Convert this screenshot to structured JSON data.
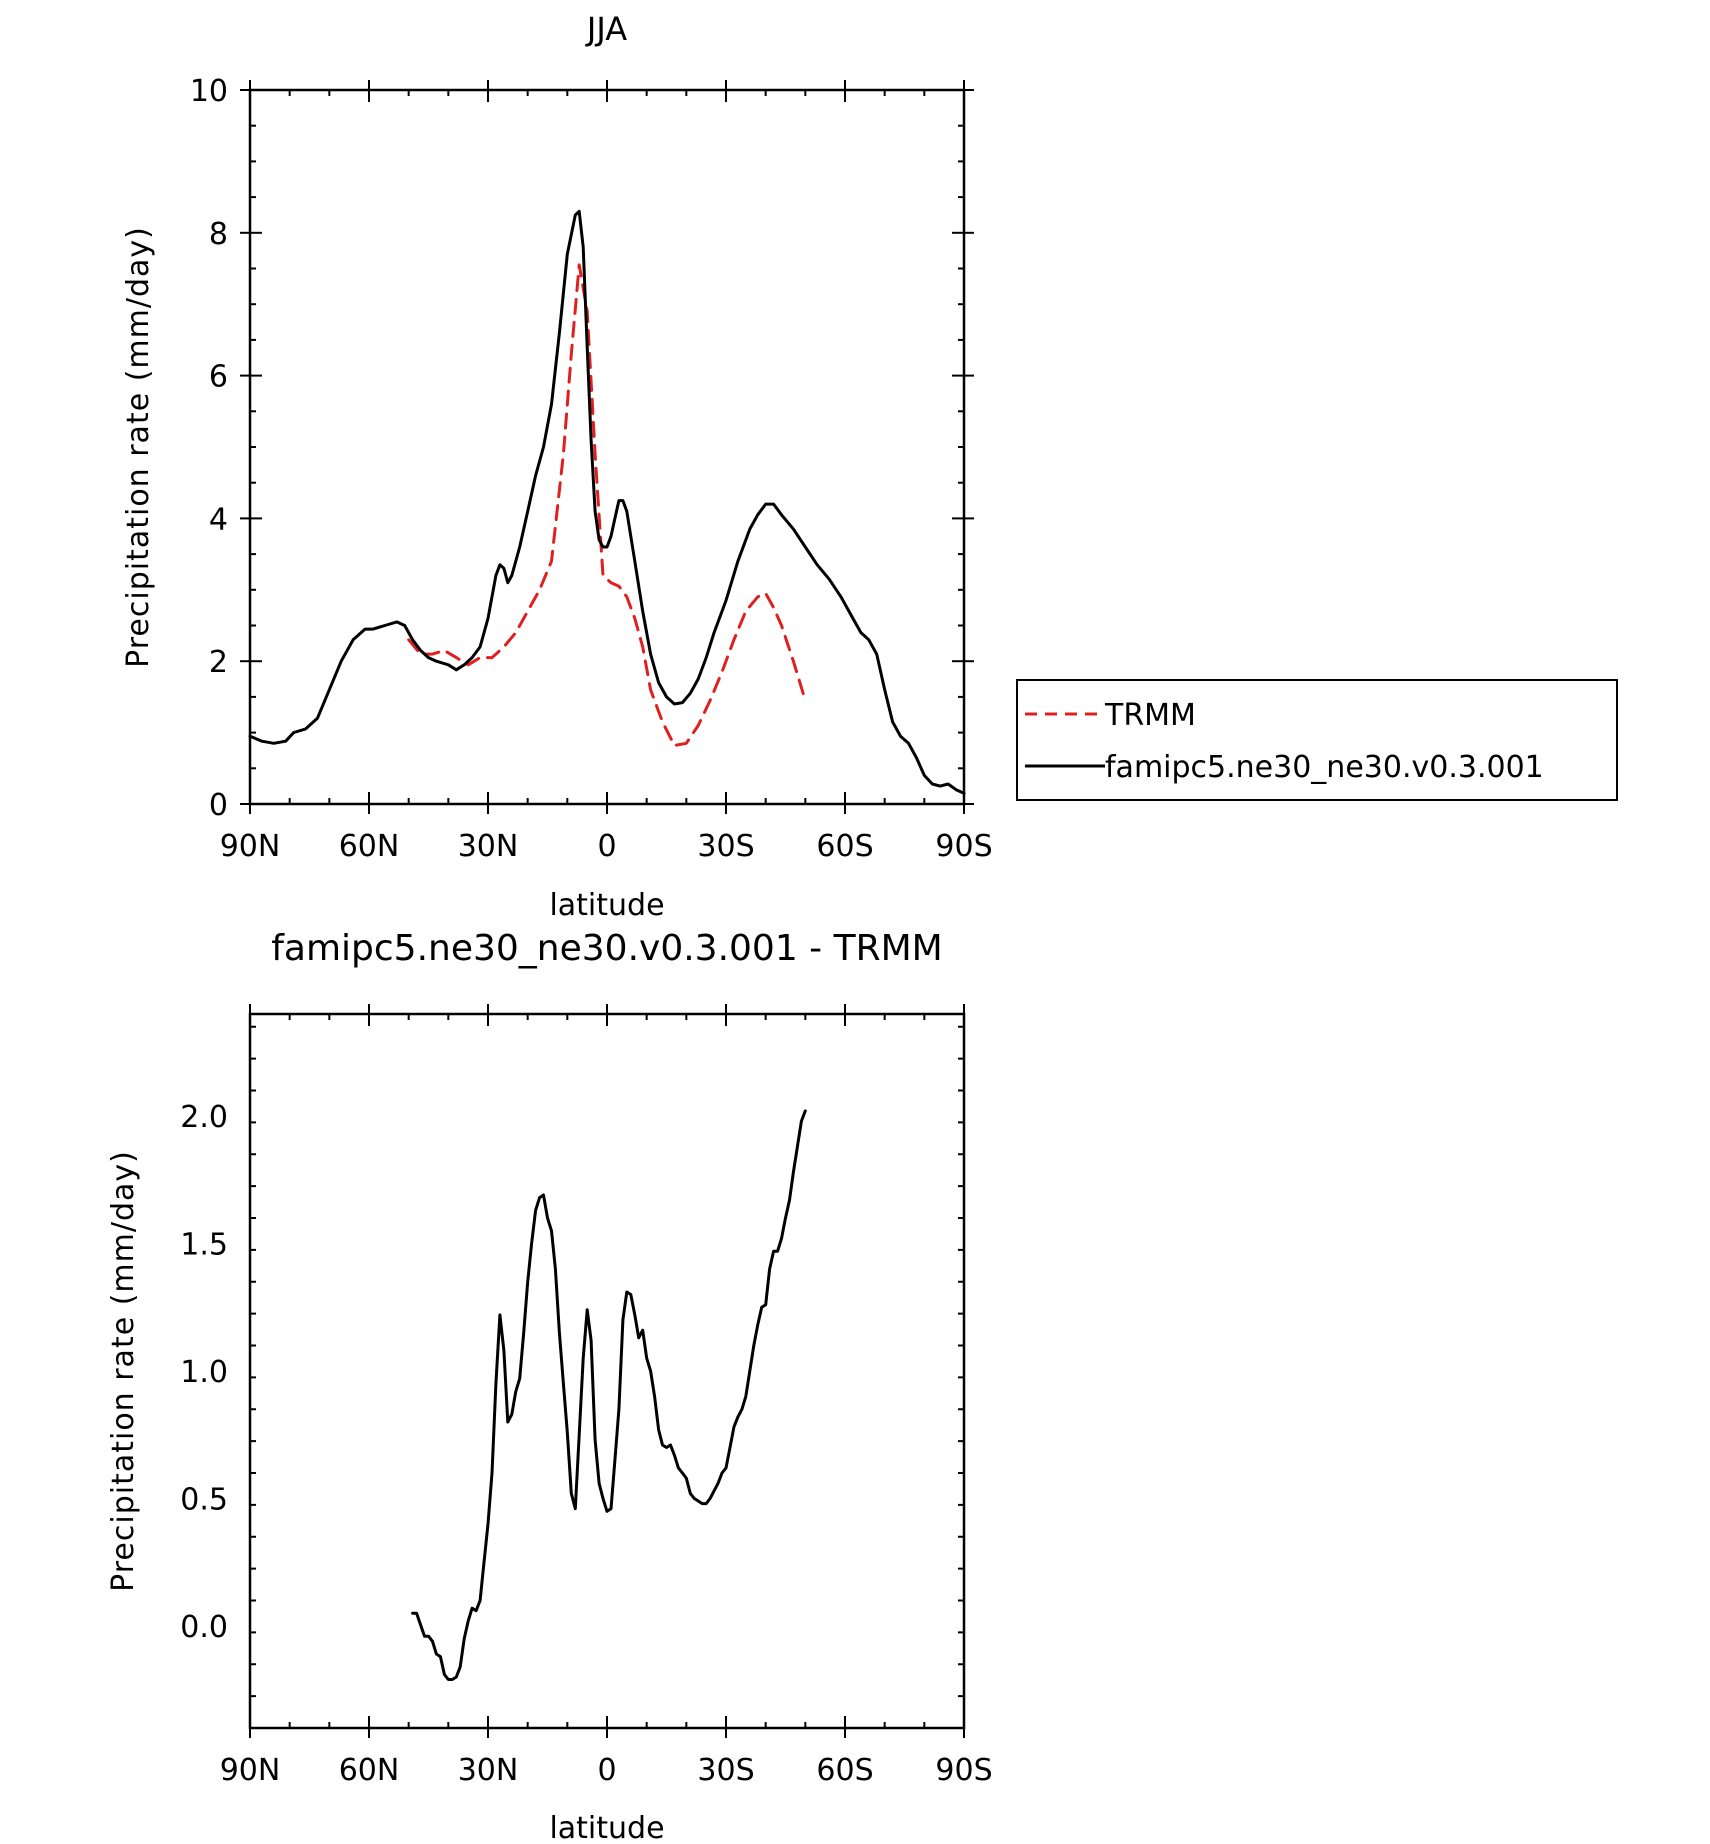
{
  "chart_data": [
    {
      "type": "line",
      "title": "JJA",
      "xlabel": "latitude",
      "ylabel": "Precipitation rate (mm/day)",
      "xlim": [
        -90,
        90
      ],
      "ylim": [
        0,
        10
      ],
      "x_orientation": "90N on left, 90S on right",
      "x_ticks": [
        -90,
        -60,
        -30,
        0,
        30,
        60,
        90
      ],
      "x_tick_labels": [
        "90N",
        "60N",
        "30N",
        "0",
        "30S",
        "60S",
        "90S"
      ],
      "y_ticks": [
        0,
        2,
        4,
        6,
        8,
        10
      ],
      "y_tick_labels": [
        "0",
        "2",
        "4",
        "6",
        "8",
        "10"
      ],
      "grid": false,
      "legend_position": "right, outside plot",
      "series": [
        {
          "name": "TRMM",
          "color": "#e02020",
          "dash": "dashed",
          "x": [
            -50,
            -47,
            -44,
            -41,
            -38,
            -35,
            -32,
            -29,
            -26,
            -23,
            -20,
            -17,
            -14,
            -11,
            -9,
            -7,
            -5,
            -3,
            -1,
            1,
            3,
            5,
            7,
            9,
            11,
            14,
            17,
            20,
            23,
            26,
            29,
            32,
            35,
            38,
            40,
            42,
            44,
            47,
            50
          ],
          "y": [
            2.3,
            2.1,
            2.1,
            2.15,
            2.05,
            1.95,
            2.05,
            2.05,
            2.2,
            2.4,
            2.7,
            3.0,
            3.4,
            4.9,
            6.3,
            7.55,
            6.9,
            4.9,
            3.2,
            3.1,
            3.05,
            2.9,
            2.6,
            2.2,
            1.6,
            1.15,
            0.82,
            0.85,
            1.1,
            1.45,
            1.85,
            2.3,
            2.7,
            2.9,
            2.95,
            2.75,
            2.5,
            2.0,
            1.45
          ]
        },
        {
          "name": "famipc5.ne30_ne30.v0.3.001",
          "color": "#000000",
          "dash": "solid",
          "x": [
            -90,
            -87,
            -84,
            -81,
            -79,
            -76,
            -73,
            -70,
            -67,
            -64,
            -61,
            -59,
            -56,
            -53,
            -51,
            -49,
            -47,
            -45,
            -43,
            -40,
            -38,
            -36,
            -34,
            -32,
            -30,
            -28,
            -27,
            -26,
            -25,
            -24,
            -22,
            -20,
            -18,
            -16,
            -14,
            -12,
            -10,
            -8,
            -7,
            -6,
            -5,
            -4,
            -3,
            -2,
            -1,
            0,
            1,
            2,
            3,
            4,
            5,
            7,
            9,
            11,
            13,
            15,
            17,
            19,
            21,
            23,
            25,
            27,
            30,
            33,
            36,
            38,
            40,
            42,
            44,
            47,
            50,
            53,
            56,
            59,
            62,
            64,
            66,
            68,
            70,
            72,
            74,
            76,
            78,
            80,
            82,
            84,
            86,
            88,
            90
          ],
          "y": [
            0.95,
            0.88,
            0.85,
            0.88,
            1.0,
            1.05,
            1.2,
            1.6,
            2.0,
            2.3,
            2.45,
            2.45,
            2.5,
            2.55,
            2.5,
            2.3,
            2.15,
            2.05,
            2.0,
            1.95,
            1.88,
            1.95,
            2.05,
            2.2,
            2.6,
            3.2,
            3.35,
            3.3,
            3.1,
            3.2,
            3.6,
            4.1,
            4.6,
            5.0,
            5.6,
            6.6,
            7.7,
            8.25,
            8.3,
            7.8,
            6.4,
            5.1,
            4.1,
            3.7,
            3.6,
            3.6,
            3.75,
            4.0,
            4.25,
            4.25,
            4.1,
            3.4,
            2.7,
            2.1,
            1.7,
            1.5,
            1.4,
            1.42,
            1.55,
            1.75,
            2.05,
            2.4,
            2.85,
            3.4,
            3.85,
            4.05,
            4.2,
            4.2,
            4.05,
            3.85,
            3.6,
            3.35,
            3.15,
            2.9,
            2.6,
            2.4,
            2.3,
            2.1,
            1.6,
            1.15,
            0.95,
            0.85,
            0.65,
            0.4,
            0.28,
            0.25,
            0.28,
            0.2,
            0.15
          ]
        }
      ]
    },
    {
      "type": "line",
      "title": "famipc5.ne30_ne30.v0.3.001 - TRMM",
      "xlabel": "latitude",
      "ylabel": "Precipitation rate (mm/day)",
      "xlim": [
        -90,
        90
      ],
      "ylim": [
        -0.4,
        2.4
      ],
      "x_orientation": "90N on left, 90S on right",
      "x_ticks": [
        -90,
        -60,
        -30,
        0,
        30,
        60,
        90
      ],
      "x_tick_labels": [
        "90N",
        "60N",
        "30N",
        "0",
        "30S",
        "60S",
        "90S"
      ],
      "y_ticks": [
        0.0,
        0.5,
        1.0,
        1.5,
        2.0
      ],
      "y_tick_labels": [
        "0.0",
        "0.5",
        "1.0",
        "1.5",
        "2.0"
      ],
      "grid": false,
      "series": [
        {
          "color": "#000000",
          "dash": "solid",
          "x": [
            -49,
            -48,
            -46,
            -45,
            -44,
            -43,
            -42,
            -41,
            -40,
            -39,
            -38,
            -37,
            -36,
            -35,
            -34,
            -33,
            -32,
            -31,
            -30,
            -29,
            -28,
            -27,
            -26,
            -25,
            -24,
            -23,
            -22,
            -21,
            -20,
            -19,
            -18,
            -17,
            -16,
            -15,
            -14,
            -13,
            -12,
            -11,
            -10,
            -9,
            -8,
            -7,
            -6,
            -5,
            -4,
            -3,
            -2,
            -1,
            0,
            1,
            2,
            3,
            4,
            5,
            6,
            7,
            8,
            9,
            10,
            11,
            12,
            13,
            14,
            15,
            16,
            17,
            18,
            19,
            20,
            21,
            22,
            23,
            24,
            25,
            26,
            27,
            28,
            29,
            30,
            31,
            32,
            33,
            34,
            35,
            36,
            37,
            38,
            39,
            40,
            41,
            42,
            43,
            44,
            45,
            46,
            47,
            48,
            49,
            50
          ],
          "y": [
            0.05,
            0.05,
            -0.04,
            -0.04,
            -0.06,
            -0.11,
            -0.12,
            -0.19,
            -0.21,
            -0.21,
            -0.2,
            -0.16,
            -0.05,
            0.02,
            0.07,
            0.06,
            0.1,
            0.25,
            0.4,
            0.6,
            0.95,
            1.22,
            1.08,
            0.8,
            0.83,
            0.92,
            0.97,
            1.15,
            1.35,
            1.5,
            1.63,
            1.68,
            1.69,
            1.6,
            1.55,
            1.4,
            1.15,
            0.95,
            0.76,
            0.52,
            0.46,
            0.75,
            1.05,
            1.24,
            1.12,
            0.73,
            0.56,
            0.5,
            0.45,
            0.46,
            0.65,
            0.85,
            1.2,
            1.31,
            1.3,
            1.22,
            1.13,
            1.16,
            1.05,
            1.0,
            0.9,
            0.77,
            0.71,
            0.7,
            0.71,
            0.67,
            0.62,
            0.6,
            0.58,
            0.52,
            0.5,
            0.49,
            0.48,
            0.48,
            0.5,
            0.53,
            0.56,
            0.6,
            0.62,
            0.7,
            0.78,
            0.82,
            0.85,
            0.9,
            1.0,
            1.1,
            1.18,
            1.25,
            1.26,
            1.4,
            1.47,
            1.47,
            1.52,
            1.6,
            1.67,
            1.78,
            1.88,
            1.98,
            2.02
          ]
        }
      ]
    }
  ]
}
